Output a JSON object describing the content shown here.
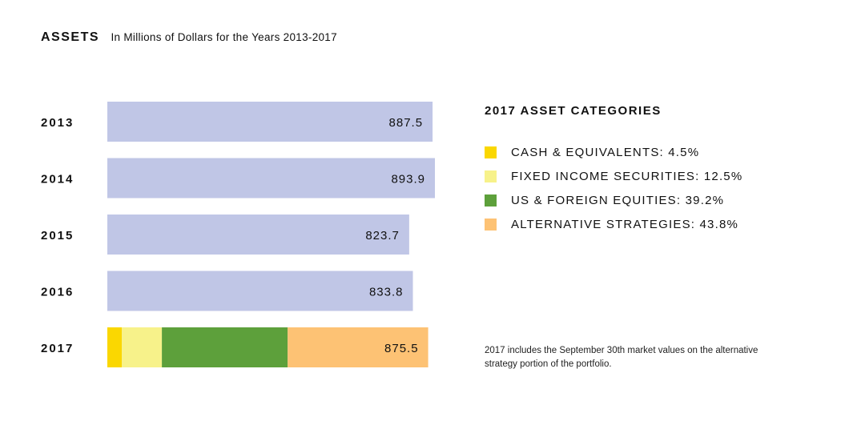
{
  "chart_data": {
    "type": "bar",
    "orientation": "horizontal",
    "title": "ASSETS",
    "subtitle": "In Millions of Dollars for the Years 2013-2017",
    "categories": [
      "2013",
      "2014",
      "2015",
      "2016",
      "2017"
    ],
    "values": [
      887.5,
      893.9,
      823.7,
      833.8,
      875.5
    ],
    "value_labels": [
      "887.5",
      "893.9",
      "823.7",
      "833.8",
      "875.5"
    ],
    "bar_color": "#c0c6e6",
    "xlim": [
      0,
      893.9
    ],
    "grid": false,
    "stacked_2017": {
      "category": "2017",
      "total": 875.5,
      "segments": [
        {
          "name": "CASH & EQUIVALENTS",
          "percent": 4.5,
          "color": "#fad701"
        },
        {
          "name": "FIXED INCOME SECURITIES",
          "percent": 12.5,
          "color": "#f7f28a"
        },
        {
          "name": "US & FOREIGN EQUITIES",
          "percent": 39.2,
          "color": "#5da03b"
        },
        {
          "name": "ALTERNATIVE STRATEGIES",
          "percent": 43.8,
          "color": "#fdc274"
        }
      ]
    },
    "legend": {
      "title": "2017 ASSET CATEGORIES",
      "placement": "right",
      "items": [
        {
          "label": "CASH & EQUIVALENTS: 4.5%",
          "color": "#fad701"
        },
        {
          "label": "FIXED INCOME SECURITIES: 12.5%",
          "color": "#f7f28a"
        },
        {
          "label": "US & FOREIGN EQUITIES: 39.2%",
          "color": "#5da03b"
        },
        {
          "label": "ALTERNATIVE STRATEGIES: 43.8%",
          "color": "#fdc274"
        }
      ]
    },
    "footnote": "2017 includes the September 30th market values on the alternative strategy portion of the portfolio."
  }
}
